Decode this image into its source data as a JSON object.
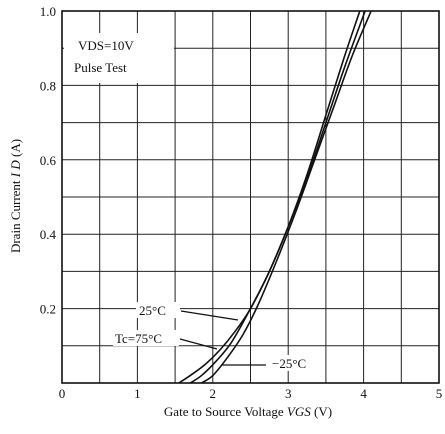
{
  "chart_data": {
    "type": "line",
    "xlabel_prefix": "Gate to Source Voltage",
    "xlabel_symbol": "VGS",
    "xlabel_unit": "(V)",
    "ylabel_prefix": "Drain Current",
    "ylabel_symbol": "I D",
    "ylabel_unit": "(A)",
    "xlim": [
      0,
      5
    ],
    "ylim": [
      0,
      1.0
    ],
    "x_ticks": [
      "0",
      "1",
      "2",
      "3",
      "4",
      "5"
    ],
    "y_ticks": [
      "0.2",
      "0.4",
      "0.6",
      "0.8",
      "1.0"
    ],
    "grid": true,
    "conditions": {
      "vds": "VDS=10V",
      "test": "Pulse Test"
    },
    "series": [
      {
        "name": "Tc=75°C",
        "x": [
          1.55,
          1.7,
          1.9,
          2.1,
          2.3,
          2.5,
          2.75,
          3.0,
          3.25,
          3.5,
          3.75,
          3.95
        ],
        "y": [
          0.0,
          0.02,
          0.05,
          0.09,
          0.14,
          0.2,
          0.3,
          0.42,
          0.56,
          0.72,
          0.88,
          1.0
        ]
      },
      {
        "name": "25°C",
        "x": [
          1.7,
          1.85,
          2.05,
          2.25,
          2.5,
          2.75,
          3.0,
          3.25,
          3.5,
          3.75,
          4.02
        ],
        "y": [
          0.0,
          0.02,
          0.06,
          0.11,
          0.2,
          0.3,
          0.42,
          0.55,
          0.7,
          0.85,
          1.0
        ]
      },
      {
        "name": "−25°C",
        "x": [
          1.85,
          2.0,
          2.2,
          2.4,
          2.6,
          2.85,
          3.1,
          3.35,
          3.6,
          3.85,
          4.1
        ],
        "y": [
          0.0,
          0.02,
          0.07,
          0.13,
          0.21,
          0.33,
          0.46,
          0.6,
          0.74,
          0.88,
          1.0
        ]
      }
    ],
    "curve_labels": [
      "25°C",
      "Tc=75°C",
      "−25°C"
    ]
  }
}
